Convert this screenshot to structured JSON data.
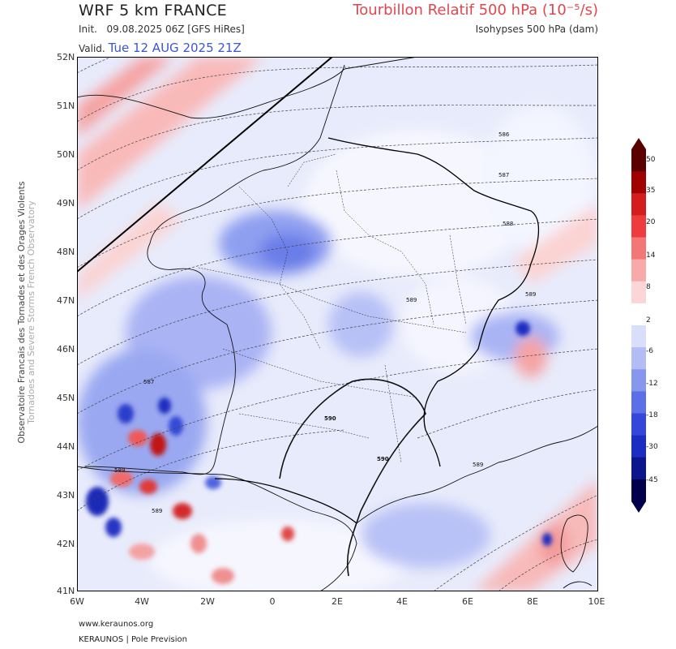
{
  "header": {
    "model_title": "WRF 5 km FRANCE",
    "init_label": "Init.",
    "init_value": "09.08.2025 06Z [GFS HiRes]",
    "valid_label": "Valid.",
    "valid_value": "Tue 12 AUG 2025 21Z",
    "parameter_title": "Tourbillon Relatif 500 hPa (10⁻⁵/s)",
    "parameter_subtitle": "Isohypses 500 hPa (dam)"
  },
  "side_text": {
    "primary": "Observatoire Francais des Tornades et des Orages Violents",
    "secondary": "Tornadoes and Severe Storms French Observatory"
  },
  "axes": {
    "y_ticks": [
      "52N",
      "51N",
      "50N",
      "49N",
      "48N",
      "47N",
      "46N",
      "45N",
      "44N",
      "43N",
      "42N",
      "41N"
    ],
    "x_ticks": [
      "6W",
      "4W",
      "2W",
      "0",
      "2E",
      "4E",
      "6E",
      "8E",
      "10E"
    ]
  },
  "map_data": {
    "lon_range": [
      -6,
      10
    ],
    "lat_range": [
      41,
      52
    ],
    "contour_labels": [
      "586",
      "587",
      "588",
      "589",
      "587",
      "589",
      "589",
      "589",
      "589",
      "590",
      "590"
    ],
    "colorbar": {
      "ticks": [
        "50",
        "35",
        "20",
        "14",
        "8",
        "2",
        "-6",
        "-12",
        "-18",
        "-30",
        "-45"
      ],
      "colors": [
        "#5a0000",
        "#a00000",
        "#d41e1e",
        "#ee3c3c",
        "#f47777",
        "#f8aaaa",
        "#fcd6d6",
        "#ffffff",
        "#d9defb",
        "#b2bcf5",
        "#8897ee",
        "#5d6fe6",
        "#3547db",
        "#1b2dc2",
        "#0b168c",
        "#02004d"
      ]
    }
  },
  "footer": {
    "url": "www.keraunos.org",
    "brand": "KERAUNOS | Pole Prevision"
  }
}
